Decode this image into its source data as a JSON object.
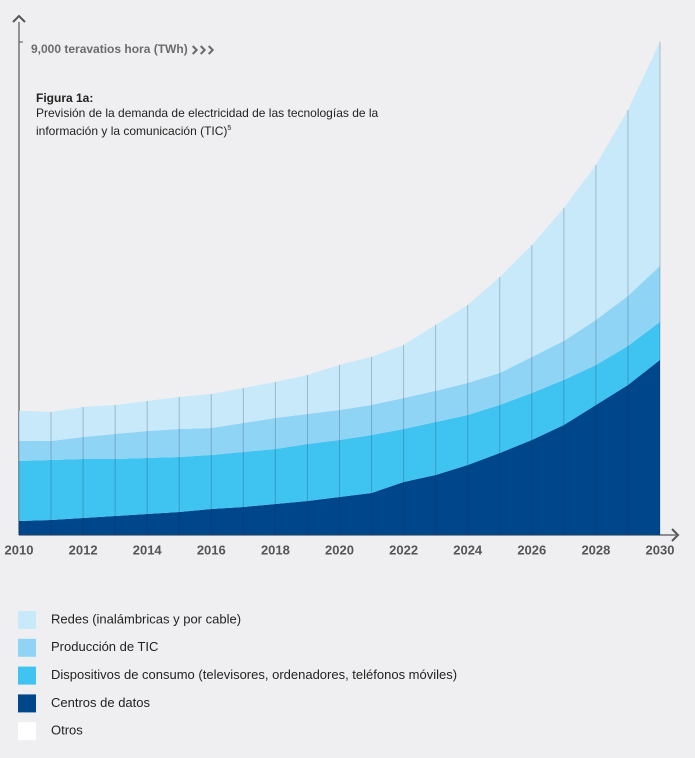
{
  "chart_data": {
    "type": "stacked-area",
    "title": "Figura 1a:",
    "subtitle": "Previsión de la demanda de electricidad de las tecnologías de la información y la comunicación (TIC)",
    "footnote_mark": "5",
    "x": [
      2010,
      2011,
      2012,
      2013,
      2014,
      2015,
      2016,
      2017,
      2018,
      2019,
      2020,
      2021,
      2022,
      2023,
      2024,
      2025,
      2026,
      2027,
      2028,
      2029,
      2030
    ],
    "xlim": [
      2010,
      2030
    ],
    "xticks": [
      2010,
      2012,
      2014,
      2016,
      2018,
      2020,
      2022,
      2024,
      2026,
      2028,
      2030
    ],
    "ylim": [
      0,
      9000
    ],
    "yticks": [
      {
        "value": 9000,
        "label": "9,000 teravatios hora (TWh)"
      }
    ],
    "series": [
      {
        "name": "Centros de datos",
        "color": "#00468b",
        "values": [
          256,
          274,
          310,
          347,
          383,
          420,
          475,
          511,
          566,
          621,
          694,
          767,
          968,
          1096,
          1278,
          1497,
          1735,
          2009,
          2374,
          2739,
          3196
        ]
      },
      {
        "name": "Dispositivos de consumo (televisores, ordenadores, teléfonos móviles)",
        "color": "#3fc3f0",
        "values": [
          1096,
          1096,
          1077,
          1041,
          1023,
          1004,
          986,
          1004,
          1004,
          1041,
          1041,
          1059,
          968,
          968,
          913,
          877,
          858,
          822,
          730,
          712,
          694
        ]
      },
      {
        "name": "Producción de TIC",
        "color": "#90d4f5",
        "values": [
          365,
          347,
          402,
          456,
          493,
          511,
          493,
          530,
          566,
          548,
          548,
          548,
          566,
          566,
          584,
          584,
          657,
          712,
          822,
          913,
          1023
        ]
      },
      {
        "name": "Redes (inalámbricas y por cable)",
        "color": "#c8e9f9",
        "values": [
          548,
          530,
          548,
          530,
          548,
          584,
          621,
          639,
          657,
          712,
          822,
          877,
          968,
          1205,
          1424,
          1753,
          2045,
          2429,
          2830,
          3397,
          4091
        ]
      }
    ],
    "legend_only": [
      {
        "name": "Otros",
        "color": "#ffffff"
      }
    ]
  }
}
